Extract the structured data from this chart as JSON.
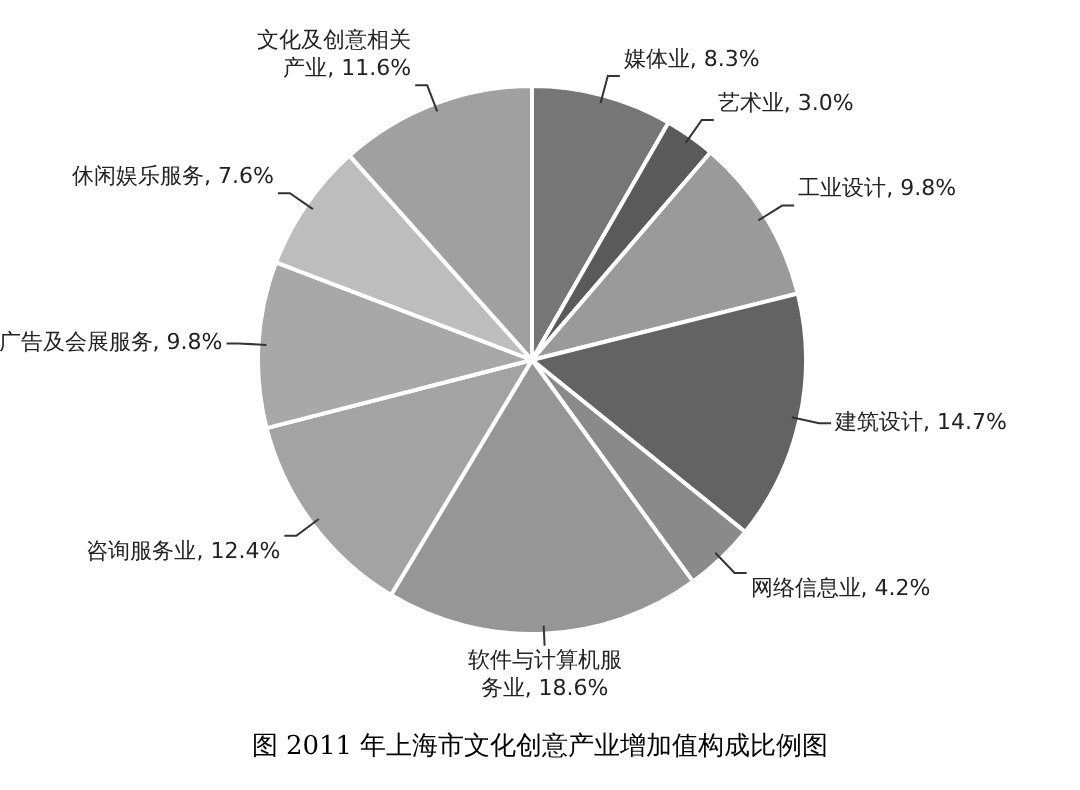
{
  "chart_data": {
    "type": "pie",
    "title": "图 2011 年上海市文化创意产业增加值构成比例图",
    "categories": [
      "媒体业",
      "艺术业",
      "工业设计",
      "建筑设计",
      "网络信息业",
      "软件与计算机服务业",
      "咨询服务业",
      "广告及会展服务",
      "休闲娱乐服务",
      "文化及创意相关产业"
    ],
    "values": [
      8.3,
      3.0,
      9.8,
      14.7,
      4.2,
      18.6,
      12.4,
      9.8,
      7.6,
      11.6
    ],
    "value_labels": [
      "8.3%",
      "3.0%",
      "9.8%",
      "14.7%",
      "4.2%",
      "18.6%",
      "12.4%",
      "9.8%",
      "7.6%",
      "11.6%"
    ],
    "colors": [
      "#767676",
      "#5a5a5a",
      "#9a9a9a",
      "#636363",
      "#8a8a8a",
      "#969696",
      "#a3a3a3",
      "#a8a8a8",
      "#bdbdbd",
      "#a0a0a0"
    ],
    "legend": false
  }
}
